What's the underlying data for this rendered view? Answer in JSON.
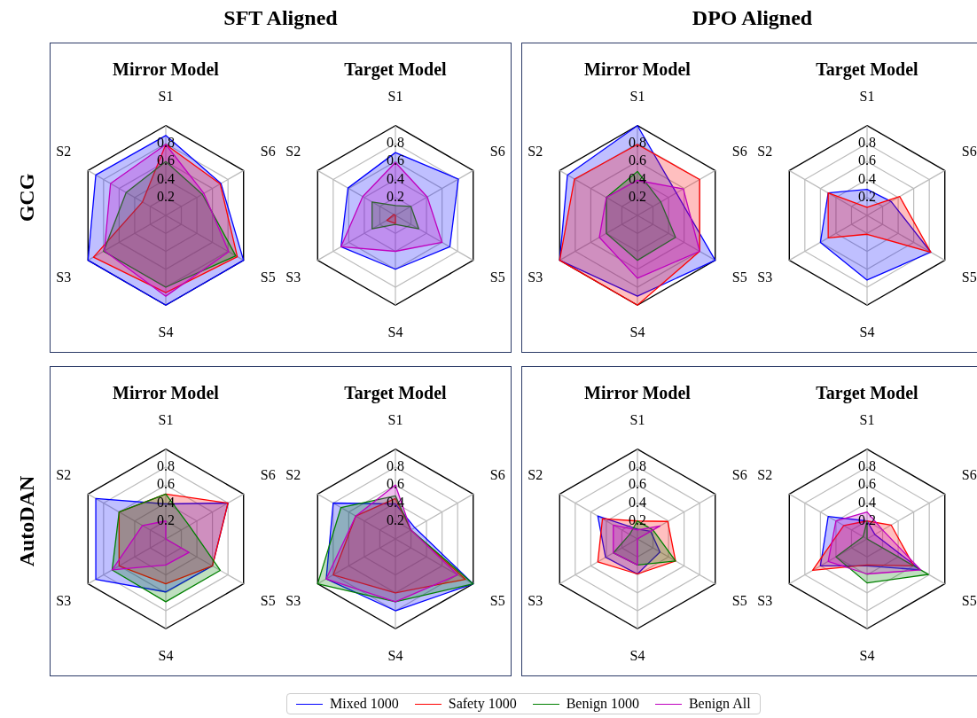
{
  "chart_data": [
    {
      "type": "radar",
      "title": "Mirror Model",
      "annotations": [
        "SFT Aligned",
        "DPO Aligned",
        "GCG",
        "AutoDAN"
      ],
      "legend": "bottom",
      "categories": [
        "S1",
        "S6",
        "S5",
        "S4",
        "S3",
        "S2"
      ],
      "ylim": [
        0,
        1
      ],
      "yticks": [
        0.2,
        0.4,
        0.6,
        0.8
      ],
      "grid": true,
      "series": [
        {
          "name": "Mixed 1000",
          "color": "#0000ff",
          "values": [
            0.89,
            0.71,
            1.0,
            1.0,
            1.0,
            0.9
          ]
        },
        {
          "name": "Safety 1000",
          "color": "#ff0000",
          "values": [
            0.79,
            0.7,
            0.92,
            0.86,
            0.93,
            0.3
          ]
        },
        {
          "name": "Benign 1000",
          "color": "#008000",
          "values": [
            0.6,
            0.47,
            0.9,
            0.8,
            0.8,
            0.51
          ]
        },
        {
          "name": "Benign All",
          "color": "#bf00bf",
          "values": [
            0.79,
            0.49,
            0.81,
            0.9,
            0.79,
            0.71
          ]
        }
      ]
    },
    {
      "type": "radar",
      "title": "Target Model",
      "categories": [
        "S1",
        "S6",
        "S5",
        "S4",
        "S3",
        "S2"
      ],
      "ylim": [
        0,
        1
      ],
      "yticks": [
        0.2,
        0.4,
        0.6,
        0.8
      ],
      "grid": true,
      "series": [
        {
          "color": "#0000ff",
          "values": [
            0.7,
            0.81,
            0.7,
            0.6,
            0.7,
            0.61
          ]
        },
        {
          "color": "#ff0000",
          "values": [
            0,
            0,
            0,
            0.09,
            0.11,
            0.02
          ]
        },
        {
          "color": "#008000",
          "values": [
            0.11,
            0.2,
            0.3,
            0.1,
            0.3,
            0.3
          ]
        },
        {
          "color": "#bf00bf",
          "values": [
            0.59,
            0.41,
            0.6,
            0.4,
            0.7,
            0.42
          ]
        }
      ]
    },
    {
      "type": "radar",
      "title": "Mirror Model",
      "categories": [
        "S1",
        "S6",
        "S5",
        "S4",
        "S3",
        "S2"
      ],
      "ylim": [
        0,
        1
      ],
      "yticks": [
        0.2,
        0.4,
        0.6,
        0.8
      ],
      "grid": true,
      "series": [
        {
          "color": "#0000ff",
          "values": [
            1.0,
            0.5,
            1.0,
            0.9,
            1.0,
            0.9
          ]
        },
        {
          "color": "#ff0000",
          "values": [
            0.79,
            0.8,
            0.8,
            1.0,
            1.0,
            0.81
          ]
        },
        {
          "color": "#008000",
          "values": [
            0.49,
            0.3,
            0.49,
            0.5,
            0.4,
            0.4
          ]
        },
        {
          "color": "#bf00bf",
          "values": [
            0.39,
            0.59,
            0.8,
            0.7,
            0.49,
            0.4
          ]
        }
      ]
    },
    {
      "type": "radar",
      "title": "Target Model",
      "categories": [
        "S1",
        "S6",
        "S5",
        "S4",
        "S3",
        "S2"
      ],
      "ylim": [
        0,
        1
      ],
      "yticks": [
        0.2,
        0.4,
        0.6,
        0.8
      ],
      "grid": true,
      "series": [
        {
          "color": "#0000ff",
          "values": [
            0.29,
            0.31,
            0.82,
            0.72,
            0.6,
            0.5
          ]
        },
        {
          "color": "#ff0000",
          "values": [
            0.09,
            0.42,
            0.82,
            0.21,
            0.5,
            0.5
          ]
        }
      ]
    },
    {
      "type": "radar",
      "title": "Mirror Model",
      "categories": [
        "S1",
        "S6",
        "S5",
        "S4",
        "S3",
        "S2"
      ],
      "ylim": [
        0,
        1
      ],
      "yticks": [
        0.2,
        0.4,
        0.6,
        0.8
      ],
      "grid": true,
      "series": [
        {
          "color": "#0000ff",
          "values": [
            0.39,
            0.8,
            0.6,
            0.59,
            0.9,
            0.9
          ]
        },
        {
          "color": "#ff0000",
          "values": [
            0.5,
            0.8,
            0.6,
            0.5,
            0.6,
            0.6
          ]
        },
        {
          "color": "#008000",
          "values": [
            0.5,
            0.3,
            0.7,
            0.7,
            0.69,
            0.6
          ]
        },
        {
          "color": "#bf00bf",
          "values": [
            0.2,
            0,
            0.3,
            0.29,
            0.69,
            0.3
          ]
        }
      ]
    },
    {
      "type": "radar",
      "title": "Target Model",
      "categories": [
        "S1",
        "S6",
        "S5",
        "S4",
        "S3",
        "S2"
      ],
      "ylim": [
        0,
        1
      ],
      "yticks": [
        0.2,
        0.4,
        0.6,
        0.8
      ],
      "grid": true,
      "series": [
        {
          "color": "#0000ff",
          "values": [
            0.39,
            0.25,
            1.0,
            0.8,
            0.89,
            0.8
          ]
        },
        {
          "color": "#ff0000",
          "values": [
            0.45,
            0.2,
            0.9,
            0.6,
            0.8,
            0.51
          ]
        },
        {
          "color": "#008000",
          "values": [
            0.48,
            0.2,
            1.0,
            0.7,
            1.0,
            0.7
          ]
        },
        {
          "color": "#bf00bf",
          "values": [
            0.6,
            0.2,
            0.8,
            0.7,
            0.89,
            0.51
          ]
        }
      ]
    },
    {
      "type": "radar",
      "title": "Mirror Model",
      "categories": [
        "S1",
        "S6",
        "S5",
        "S4",
        "S3",
        "S2"
      ],
      "ylim": [
        0,
        1
      ],
      "yticks": [
        0.2,
        0.4,
        0.6,
        0.8
      ],
      "grid": true,
      "series": [
        {
          "color": "#0000ff",
          "values": [
            0.11,
            0.17,
            0.29,
            0.39,
            0.41,
            0.51
          ]
        },
        {
          "color": "#ff0000",
          "values": [
            0.2,
            0.39,
            0.49,
            0.39,
            0.51,
            0.45
          ]
        },
        {
          "color": "#008000",
          "values": [
            0.2,
            0.2,
            0.49,
            0.29,
            0.31,
            0.1
          ]
        },
        {
          "color": "#bf00bf",
          "values": [
            0.1,
            0.29,
            0,
            0.29,
            0.31,
            0.31
          ]
        }
      ]
    },
    {
      "type": "radar",
      "title": "Target Model",
      "categories": [
        "S1",
        "S6",
        "S5",
        "S4",
        "S3",
        "S2"
      ],
      "ylim": [
        0,
        1
      ],
      "yticks": [
        0.2,
        0.4,
        0.6,
        0.8
      ],
      "grid": true,
      "series": [
        {
          "color": "#0000ff",
          "values": [
            0.2,
            0.1,
            0.69,
            0.3,
            0.6,
            0.5
          ]
        },
        {
          "color": "#ff0000",
          "values": [
            0.2,
            0.31,
            0.6,
            0.29,
            0.7,
            0.3
          ]
        },
        {
          "color": "#008000",
          "values": [
            0.2,
            0,
            0.79,
            0.49,
            0.4,
            0.05
          ]
        },
        {
          "color": "#bf00bf",
          "values": [
            0.3,
            0.2,
            0.69,
            0.39,
            0.5,
            0.4
          ]
        }
      ]
    }
  ]
}
